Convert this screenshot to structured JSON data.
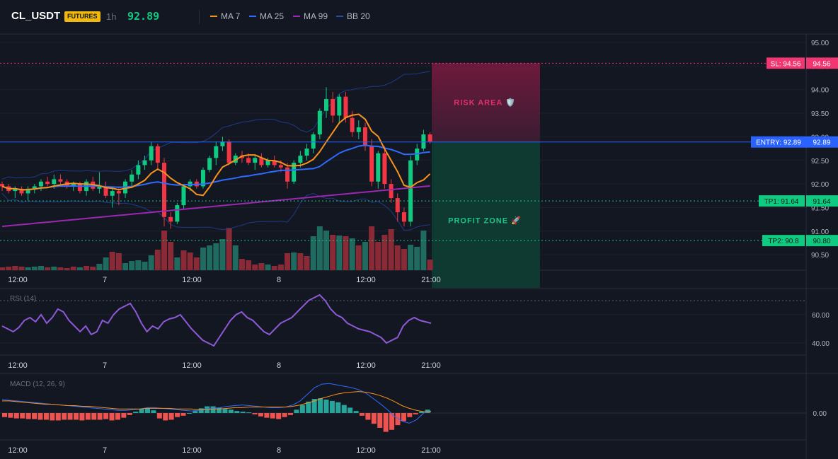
{
  "header": {
    "symbol": "CL_USDT",
    "badge": "FUTURES",
    "timeframe": "1h",
    "last_price": "92.89"
  },
  "legend": [
    {
      "label": "MA 7",
      "color": "#f7931a"
    },
    {
      "label": "MA 25",
      "color": "#2f6bff"
    },
    {
      "label": "MA 99",
      "color": "#9c27b0"
    },
    {
      "label": "BB 20",
      "color": "#1e3a8a"
    }
  ],
  "price_axis": [
    "95.00",
    "94.50",
    "94.00",
    "93.50",
    "93.00",
    "92.50",
    "92.00",
    "91.50",
    "91.00",
    "90.50"
  ],
  "levels": {
    "sl": {
      "label": "SL: 94.56",
      "axis": "94.56",
      "value": 94.56,
      "color": "#f23672"
    },
    "entry": {
      "label": "ENTRY: 92.89",
      "axis": "92.89",
      "value": 92.89,
      "color": "#2962ff"
    },
    "tp1": {
      "label": "TP1: 91.64",
      "axis": "91.64",
      "value": 91.64,
      "color": "#0ecb81"
    },
    "tp2": {
      "label": "TP2: 90.8",
      "axis": "90.80",
      "value": 90.8,
      "color": "#0ecb81"
    }
  },
  "zones": {
    "risk": "RISK AREA 🛡️",
    "profit": "PROFIT ZONE 🚀"
  },
  "time_axis": [
    "12:00",
    "7",
    "12:00",
    "8",
    "12:00",
    "21:00"
  ],
  "rsi": {
    "title": "RSI (14)",
    "axis": [
      "60.00",
      "40.00"
    ]
  },
  "macd": {
    "title": "MACD (12, 26, 9)",
    "axis": [
      "0.00"
    ]
  },
  "chart_data": {
    "type": "candlestick",
    "ylim": [
      90.1,
      95.15
    ],
    "candles": [
      [
        92.0,
        92.05,
        91.85,
        91.95
      ],
      [
        91.95,
        92.0,
        91.8,
        91.85
      ],
      [
        91.85,
        91.95,
        91.7,
        91.9
      ],
      [
        91.9,
        91.95,
        91.75,
        91.8
      ],
      [
        91.8,
        91.95,
        91.65,
        91.9
      ],
      [
        91.9,
        92.0,
        91.8,
        91.95
      ],
      [
        91.95,
        92.1,
        91.85,
        92.05
      ],
      [
        92.05,
        92.15,
        91.95,
        92.0
      ],
      [
        92.0,
        92.2,
        91.9,
        92.1
      ],
      [
        92.1,
        92.2,
        91.95,
        92.05
      ],
      [
        92.05,
        92.1,
        91.9,
        91.95
      ],
      [
        91.95,
        92.05,
        91.85,
        92.0
      ],
      [
        92.0,
        92.05,
        91.8,
        91.85
      ],
      [
        91.85,
        92.1,
        91.75,
        92.05
      ],
      [
        92.05,
        92.15,
        91.85,
        91.9
      ],
      [
        91.9,
        92.25,
        91.8,
        91.95
      ],
      [
        91.95,
        92.05,
        91.7,
        91.75
      ],
      [
        91.75,
        91.95,
        91.5,
        91.85
      ],
      [
        91.85,
        91.95,
        91.55,
        91.8
      ],
      [
        91.8,
        92.1,
        91.7,
        92.05
      ],
      [
        92.05,
        92.3,
        91.95,
        92.2
      ],
      [
        92.2,
        92.5,
        92.1,
        92.4
      ],
      [
        92.4,
        92.6,
        92.3,
        92.5
      ],
      [
        92.5,
        92.9,
        92.4,
        92.8
      ],
      [
        92.8,
        92.85,
        92.3,
        92.45
      ],
      [
        92.45,
        92.55,
        91.1,
        91.3
      ],
      [
        91.3,
        91.4,
        91.05,
        91.2
      ],
      [
        91.2,
        91.6,
        91.15,
        91.55
      ],
      [
        91.55,
        92.0,
        91.45,
        91.95
      ],
      [
        91.95,
        92.1,
        91.85,
        92.05
      ],
      [
        92.05,
        92.1,
        91.9,
        91.95
      ],
      [
        91.95,
        92.35,
        91.9,
        92.3
      ],
      [
        92.3,
        92.6,
        92.25,
        92.55
      ],
      [
        92.55,
        92.9,
        92.4,
        92.8
      ],
      [
        92.8,
        93.0,
        92.7,
        92.9
      ],
      [
        92.9,
        92.95,
        92.4,
        92.45
      ],
      [
        92.45,
        92.65,
        92.4,
        92.6
      ],
      [
        92.6,
        92.7,
        92.45,
        92.55
      ],
      [
        92.55,
        92.65,
        92.4,
        92.45
      ],
      [
        92.45,
        92.6,
        92.3,
        92.55
      ],
      [
        92.55,
        92.65,
        92.35,
        92.4
      ],
      [
        92.4,
        92.55,
        92.35,
        92.5
      ],
      [
        92.5,
        92.6,
        92.35,
        92.4
      ],
      [
        92.4,
        92.5,
        92.25,
        92.35
      ],
      [
        92.35,
        92.45,
        91.9,
        92.05
      ],
      [
        92.05,
        92.5,
        92.0,
        92.45
      ],
      [
        92.45,
        92.7,
        92.35,
        92.6
      ],
      [
        92.6,
        92.85,
        92.5,
        92.75
      ],
      [
        92.75,
        93.1,
        92.65,
        93.05
      ],
      [
        93.05,
        93.6,
        92.95,
        93.55
      ],
      [
        93.55,
        94.05,
        93.4,
        93.8
      ],
      [
        93.8,
        93.95,
        93.3,
        93.45
      ],
      [
        93.45,
        93.9,
        93.3,
        93.85
      ],
      [
        93.85,
        93.95,
        93.3,
        93.4
      ],
      [
        93.4,
        93.55,
        93.0,
        93.1
      ],
      [
        93.1,
        93.35,
        92.95,
        93.2
      ],
      [
        93.2,
        93.3,
        92.7,
        92.8
      ],
      [
        92.8,
        92.95,
        91.95,
        92.05
      ],
      [
        92.05,
        92.7,
        91.9,
        92.65
      ],
      [
        92.65,
        92.8,
        91.9,
        92.0
      ],
      [
        92.0,
        92.1,
        91.6,
        91.7
      ],
      [
        91.7,
        91.8,
        91.2,
        91.4
      ],
      [
        91.4,
        91.5,
        91.1,
        91.2
      ],
      [
        91.2,
        92.6,
        91.1,
        92.5
      ],
      [
        92.5,
        92.85,
        92.4,
        92.75
      ],
      [
        92.75,
        93.15,
        92.7,
        93.05
      ],
      [
        93.05,
        93.1,
        92.85,
        92.9
      ]
    ],
    "volume": [
      [
        4,
        "d"
      ],
      [
        5,
        "d"
      ],
      [
        6,
        "d"
      ],
      [
        5,
        "d"
      ],
      [
        4,
        "u"
      ],
      [
        5,
        "u"
      ],
      [
        6,
        "u"
      ],
      [
        4,
        "d"
      ],
      [
        5,
        "u"
      ],
      [
        4,
        "d"
      ],
      [
        3,
        "d"
      ],
      [
        5,
        "d"
      ],
      [
        4,
        "u"
      ],
      [
        6,
        "d"
      ],
      [
        5,
        "d"
      ],
      [
        9,
        "u"
      ],
      [
        18,
        "u"
      ],
      [
        26,
        "d"
      ],
      [
        24,
        "d"
      ],
      [
        10,
        "u"
      ],
      [
        13,
        "u"
      ],
      [
        14,
        "u"
      ],
      [
        12,
        "u"
      ],
      [
        21,
        "u"
      ],
      [
        29,
        "d"
      ],
      [
        56,
        "d"
      ],
      [
        40,
        "d"
      ],
      [
        18,
        "u"
      ],
      [
        28,
        "d"
      ],
      [
        25,
        "d"
      ],
      [
        18,
        "d"
      ],
      [
        32,
        "u"
      ],
      [
        35,
        "u"
      ],
      [
        38,
        "u"
      ],
      [
        44,
        "u"
      ],
      [
        60,
        "d"
      ],
      [
        35,
        "u"
      ],
      [
        16,
        "d"
      ],
      [
        14,
        "d"
      ],
      [
        8,
        "d"
      ],
      [
        10,
        "d"
      ],
      [
        8,
        "u"
      ],
      [
        6,
        "d"
      ],
      [
        8,
        "d"
      ],
      [
        24,
        "d"
      ],
      [
        25,
        "u"
      ],
      [
        24,
        "d"
      ],
      [
        20,
        "d"
      ],
      [
        48,
        "u"
      ],
      [
        62,
        "u"
      ],
      [
        56,
        "u"
      ],
      [
        50,
        "d"
      ],
      [
        49,
        "u"
      ],
      [
        48,
        "d"
      ],
      [
        45,
        "u"
      ],
      [
        35,
        "d"
      ],
      [
        40,
        "u"
      ],
      [
        62,
        "d"
      ],
      [
        40,
        "d"
      ],
      [
        50,
        "d"
      ],
      [
        58,
        "d"
      ],
      [
        35,
        "d"
      ],
      [
        30,
        "d"
      ],
      [
        36,
        "u"
      ],
      [
        33,
        "u"
      ],
      [
        56,
        "u"
      ],
      [
        15,
        "d"
      ]
    ],
    "rsi": [
      52,
      50,
      48,
      51,
      56,
      58,
      55,
      60,
      54,
      58,
      64,
      62,
      56,
      52,
      48,
      52,
      46,
      48,
      56,
      54,
      60,
      64,
      66,
      68,
      62,
      54,
      48,
      52,
      50,
      55,
      57,
      58,
      60,
      55,
      50,
      46,
      42,
      40,
      38,
      44,
      50,
      56,
      60,
      62,
      58,
      56,
      52,
      48,
      46,
      50,
      54,
      56,
      58,
      62,
      66,
      70,
      72,
      74,
      70,
      64,
      60,
      58,
      54,
      52,
      50,
      49,
      48,
      46,
      44,
      40,
      42,
      44,
      52,
      56,
      58,
      56,
      55,
      54
    ],
    "macd_hist": [
      -0.06,
      -0.07,
      -0.08,
      -0.08,
      -0.09,
      -0.09,
      -0.1,
      -0.1,
      -0.11,
      -0.11,
      -0.1,
      -0.1,
      -0.1,
      -0.11,
      -0.1,
      -0.1,
      -0.1,
      -0.09,
      -0.11,
      -0.1,
      -0.07,
      -0.03,
      0.02,
      0.06,
      0.07,
      0.04,
      -0.08,
      -0.11,
      -0.1,
      -0.06,
      -0.04,
      0.0,
      0.03,
      0.07,
      0.1,
      0.1,
      0.08,
      0.06,
      0.05,
      0.03,
      0.02,
      0.01,
      -0.02,
      -0.05,
      -0.07,
      -0.08,
      -0.09,
      -0.06,
      -0.03,
      0.05,
      0.12,
      0.17,
      0.21,
      0.22,
      0.2,
      0.18,
      0.16,
      0.12,
      0.08,
      0.03,
      -0.04,
      -0.1,
      -0.16,
      -0.22,
      -0.28,
      -0.25,
      -0.18,
      -0.12,
      -0.06,
      -0.02,
      0.02,
      0.05
    ],
    "macd_line": [
      0.2,
      0.19,
      0.18,
      0.17,
      0.16,
      0.15,
      0.14,
      0.13,
      0.12,
      0.11,
      0.1,
      0.09,
      0.08,
      0.07,
      0.06,
      0.05,
      0.04,
      0.04,
      0.05,
      0.06,
      0.08,
      0.08,
      0.07,
      0.06,
      0.05,
      0.04,
      0.03,
      0.04,
      0.06,
      0.07,
      0.08,
      0.1,
      0.11,
      0.12,
      0.11,
      0.1,
      0.09,
      0.08,
      0.08,
      0.09,
      0.12,
      0.18,
      0.28,
      0.38,
      0.43,
      0.44,
      0.42,
      0.4,
      0.38,
      0.35,
      0.3,
      0.22,
      0.14,
      0.05,
      -0.05,
      -0.12,
      -0.15,
      -0.1,
      0.0,
      0.03
    ],
    "macd_signal": [
      0.18,
      0.18,
      0.17,
      0.16,
      0.15,
      0.14,
      0.13,
      0.13,
      0.12,
      0.11,
      0.11,
      0.1,
      0.1,
      0.09,
      0.08,
      0.07,
      0.06,
      0.06,
      0.06,
      0.06,
      0.07,
      0.07,
      0.07,
      0.07,
      0.06,
      0.06,
      0.06,
      0.05,
      0.05,
      0.06,
      0.06,
      0.07,
      0.08,
      0.08,
      0.09,
      0.09,
      0.09,
      0.09,
      0.09,
      0.09,
      0.1,
      0.12,
      0.15,
      0.18,
      0.22,
      0.25,
      0.28,
      0.3,
      0.31,
      0.32,
      0.31,
      0.29,
      0.26,
      0.22,
      0.17,
      0.11,
      0.07,
      0.04,
      0.02,
      0.02
    ]
  }
}
